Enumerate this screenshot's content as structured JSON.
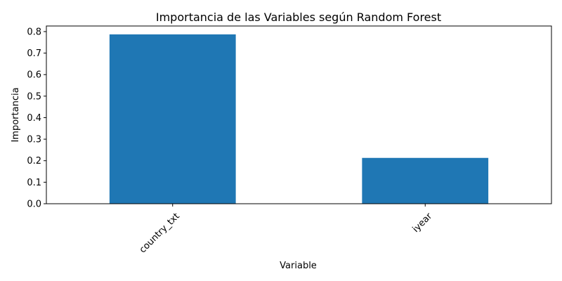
{
  "chart_data": {
    "type": "bar",
    "title": "Importancia de las Variables según Random Forest",
    "xlabel": "Variable",
    "ylabel": "Importancia",
    "categories": [
      "country_txt",
      "iyear"
    ],
    "values": [
      0.787,
      0.213
    ],
    "ylim": [
      0,
      0.826
    ],
    "yticks": [
      "0.0",
      "0.1",
      "0.2",
      "0.3",
      "0.4",
      "0.5",
      "0.6",
      "0.7",
      "0.8"
    ],
    "ytick_values": [
      0,
      0.1,
      0.2,
      0.3,
      0.4,
      0.5,
      0.6,
      0.7,
      0.8
    ],
    "bar_color": "#1f77b4",
    "grid": false,
    "xtick_rotation_deg": 45
  }
}
